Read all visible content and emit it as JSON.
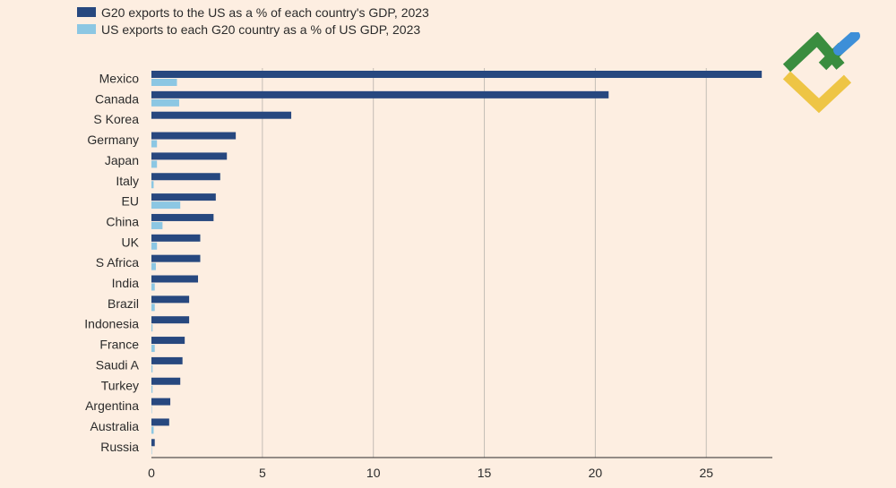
{
  "legend": {
    "series1_label": "G20 exports to the US as a % of each country's GDP, 2023",
    "series2_label": "US exports to each G20 country as a % of US GDP, 2023"
  },
  "colors": {
    "series1": "#27487f",
    "series2": "#8cc7e3",
    "grid": "#c4bdb6",
    "axis": "#2b2b2b",
    "background": "#fdeee1",
    "logo_green": "#3a8d3f",
    "logo_blue": "#3d8fd8",
    "logo_yellow": "#eec545"
  },
  "chart_data": {
    "type": "bar",
    "orientation": "horizontal",
    "categories": [
      "Mexico",
      "Canada",
      "S Korea",
      "Germany",
      "Japan",
      "Italy",
      "EU",
      "China",
      "UK",
      "S Africa",
      "India",
      "Brazil",
      "Indonesia",
      "France",
      "Saudi A",
      "Turkey",
      "Argentina",
      "Australia",
      "Russia"
    ],
    "series": [
      {
        "name": "G20 exports to the US as a % of each country's GDP, 2023",
        "values": [
          27.5,
          20.6,
          6.3,
          3.8,
          3.4,
          3.1,
          2.9,
          2.8,
          2.2,
          2.2,
          2.1,
          1.7,
          1.7,
          1.5,
          1.4,
          1.3,
          0.85,
          0.8,
          0.15
        ]
      },
      {
        "name": "US exports to each G20 country as a % of US GDP, 2023",
        "values": [
          1.15,
          1.25,
          0.0,
          0.25,
          0.25,
          0.1,
          1.3,
          0.5,
          0.25,
          0.2,
          0.15,
          0.15,
          0.05,
          0.15,
          0.05,
          0.05,
          0.02,
          0.1,
          0.02
        ]
      }
    ],
    "xlim": [
      0,
      28
    ],
    "xticks": [
      0,
      5,
      10,
      15,
      20,
      25
    ],
    "grid": "vertical",
    "legend_position": "top-left"
  }
}
